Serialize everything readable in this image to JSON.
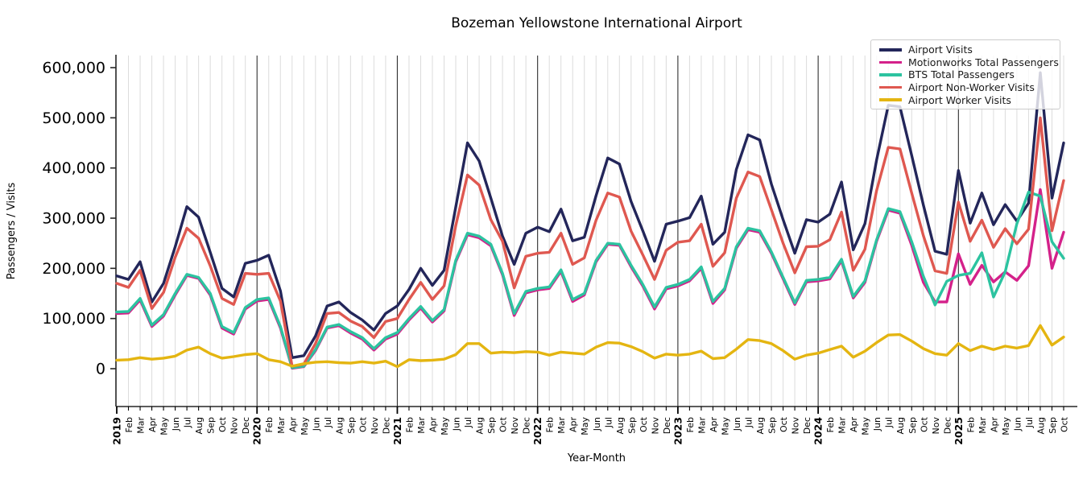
{
  "chart_data": {
    "type": "line",
    "title": "Bozeman Yellowstone International Airport",
    "xlabel": "Year-Month",
    "ylabel": "Passengers / Visits",
    "ylim": [
      0,
      600000
    ],
    "grid": "vertical gridline per month, dark vertical line at each January (year start)",
    "legend_position": "upper right",
    "axis_color": "#262626",
    "month_gridline_color": "#dcdcdc",
    "year_gridline_color": "#303030",
    "y_ticks": [
      0,
      100000,
      200000,
      300000,
      400000,
      500000,
      600000
    ],
    "y_tick_labels": [
      "0",
      "100,000",
      "200,000",
      "300,000",
      "400,000",
      "500,000",
      "600,000"
    ],
    "x_tick_labels": [
      "2019",
      "Feb",
      "Mar",
      "Apr",
      "May",
      "Jun",
      "Jul",
      "Aug",
      "Sep",
      "Oct",
      "Nov",
      "Dec",
      "2020",
      "Feb",
      "Mar",
      "Apr",
      "May",
      "Jun",
      "Jul",
      "Aug",
      "Sep",
      "Oct",
      "Nov",
      "Dec",
      "2021",
      "Feb",
      "Mar",
      "Apr",
      "May",
      "Jun",
      "Jul",
      "Aug",
      "Sep",
      "Oct",
      "Nov",
      "Dec",
      "2022",
      "Feb",
      "Mar",
      "Apr",
      "May",
      "Jun",
      "Jul",
      "Aug",
      "Sep",
      "Oct",
      "Nov",
      "Dec",
      "2023",
      "Feb",
      "Mar",
      "Apr",
      "May",
      "Jun",
      "Jul",
      "Aug",
      "Sep",
      "Oct",
      "Nov",
      "Dec",
      "2024",
      "Feb",
      "Mar",
      "Apr",
      "May",
      "Jun",
      "Jul",
      "Aug",
      "Sep",
      "Oct",
      "Nov",
      "Dec",
      "2025",
      "Feb",
      "Mar",
      "Apr",
      "May",
      "Jun",
      "Jul",
      "Aug",
      "Sep",
      "Oct"
    ],
    "series": [
      {
        "name": "Airport Visits",
        "color": "#23265a",
        "values": [
          185000,
          178000,
          213000,
          133000,
          170000,
          243000,
          323000,
          302000,
          232000,
          160000,
          143000,
          210000,
          216000,
          226000,
          155000,
          22000,
          26000,
          65000,
          125000,
          133000,
          112000,
          97000,
          77000,
          110000,
          125000,
          158000,
          200000,
          166000,
          196000,
          322000,
          450000,
          414000,
          340000,
          264000,
          208000,
          270000,
          282000,
          273000,
          318000,
          255000,
          262000,
          345000,
          420000,
          408000,
          333000,
          275000,
          214000,
          288000,
          294000,
          301000,
          344000,
          248000,
          272000,
          397000,
          466000,
          456000,
          368000,
          297000,
          230000,
          297000,
          292000,
          308000,
          372000,
          237000,
          289000,
          416000,
          525000,
          522000,
          425000,
          326000,
          234000,
          228000,
          395000,
          290000,
          350000,
          287000,
          327000,
          294000,
          330000,
          590000,
          340000,
          450000
        ]
      },
      {
        "name": "Motionworks Total Passengers",
        "color": "#d4218a",
        "values": [
          110000,
          111000,
          137000,
          84000,
          105000,
          147000,
          186000,
          180000,
          147000,
          81000,
          69000,
          119000,
          135000,
          138000,
          81000,
          1000,
          4000,
          36000,
          81000,
          86000,
          71000,
          59000,
          37000,
          59000,
          69000,
          97000,
          121000,
          93000,
          115000,
          213000,
          267000,
          261000,
          245000,
          187000,
          106000,
          151000,
          157000,
          160000,
          194000,
          134000,
          147000,
          213000,
          248000,
          246000,
          203000,
          165000,
          119000,
          159000,
          165000,
          175000,
          200000,
          130000,
          157000,
          240000,
          277000,
          272000,
          230000,
          179000,
          128000,
          173000,
          175000,
          179000,
          215000,
          141000,
          172000,
          254000,
          316000,
          310000,
          246000,
          172000,
          133000,
          133000,
          229000,
          168000,
          206000,
          173000,
          193000,
          176000,
          205000,
          357000,
          200000,
          272000
        ]
      },
      {
        "name": "BTS Total Passengers",
        "color": "#2cc3a0",
        "values": [
          113000,
          114000,
          140000,
          87000,
          108000,
          150000,
          188000,
          182000,
          150000,
          84000,
          72000,
          122000,
          138000,
          141000,
          84000,
          2000,
          5000,
          38000,
          83000,
          88000,
          74000,
          62000,
          40000,
          62000,
          72000,
          100000,
          124000,
          96000,
          118000,
          216000,
          270000,
          264000,
          248000,
          190000,
          110000,
          154000,
          160000,
          163000,
          197000,
          138000,
          150000,
          216000,
          250000,
          248000,
          206000,
          168000,
          123000,
          162000,
          168000,
          178000,
          203000,
          134000,
          160000,
          243000,
          280000,
          275000,
          233000,
          182000,
          131000,
          176000,
          178000,
          182000,
          218000,
          144000,
          175000,
          257000,
          319000,
          313000,
          253000,
          184000,
          127000,
          174000,
          186000,
          190000,
          231000,
          143000,
          193000,
          289000,
          352000,
          344000,
          253000,
          220000
        ]
      },
      {
        "name": "Airport Non-Worker Visits",
        "color": "#df5850",
        "values": [
          170000,
          162000,
          196000,
          120000,
          152000,
          222000,
          280000,
          260000,
          205000,
          140000,
          128000,
          190000,
          188000,
          190000,
          135000,
          5000,
          9000,
          50000,
          110000,
          112000,
          95000,
          84000,
          62000,
          94000,
          100000,
          138000,
          172000,
          138000,
          165000,
          285000,
          386000,
          366000,
          297000,
          254000,
          161000,
          224000,
          230000,
          232000,
          270000,
          208000,
          221000,
          296000,
          350000,
          342000,
          274000,
          227000,
          178000,
          236000,
          252000,
          255000,
          288000,
          204000,
          231000,
          340000,
          392000,
          383000,
          317000,
          250000,
          191000,
          243000,
          244000,
          257000,
          312000,
          196000,
          238000,
          355000,
          441000,
          438000,
          350000,
          265000,
          195000,
          190000,
          332000,
          254000,
          296000,
          242000,
          279000,
          249000,
          278000,
          500000,
          275000,
          375000
        ]
      },
      {
        "name": "Airport Worker Visits",
        "color": "#e4b511",
        "values": [
          17000,
          18000,
          22000,
          19000,
          21000,
          25000,
          37000,
          43000,
          30000,
          21000,
          24000,
          28000,
          30000,
          18000,
          14000,
          5000,
          10000,
          13000,
          14000,
          12000,
          11000,
          14000,
          11000,
          15000,
          4000,
          18000,
          16000,
          17000,
          19000,
          28000,
          50000,
          50000,
          31000,
          33000,
          32000,
          34000,
          33000,
          27000,
          33000,
          31000,
          29000,
          43000,
          52000,
          51000,
          44000,
          34000,
          21000,
          29000,
          27000,
          29000,
          35000,
          20000,
          22000,
          39000,
          58000,
          56000,
          50000,
          36000,
          19000,
          27000,
          31000,
          38000,
          45000,
          23000,
          35000,
          52000,
          67000,
          68000,
          55000,
          40000,
          30000,
          27000,
          50000,
          36000,
          45000,
          38000,
          45000,
          41000,
          46000,
          86000,
          47000,
          63000
        ]
      }
    ]
  }
}
